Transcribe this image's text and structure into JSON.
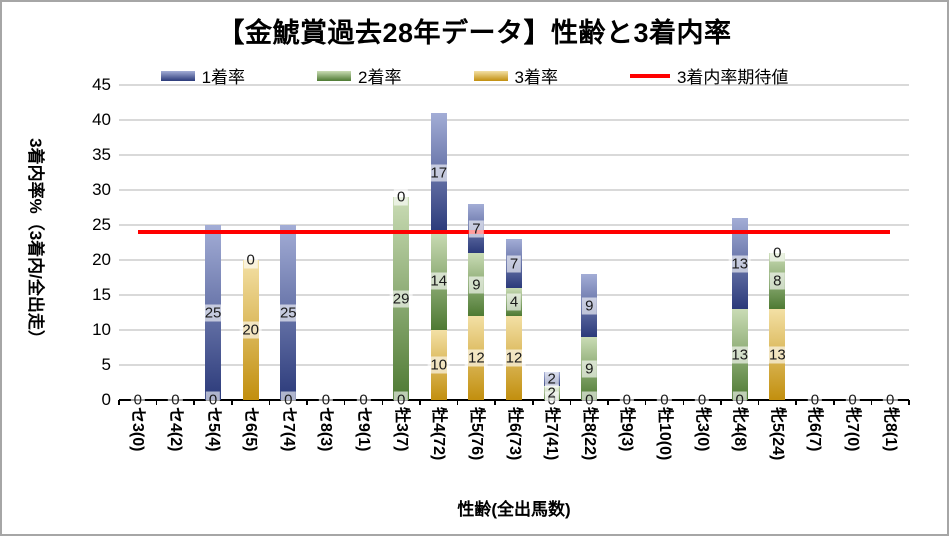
{
  "title": "【金鯱賞過去28年データ】性齢と3着内率",
  "legend": [
    {
      "label": "1着率",
      "marker": "bar",
      "light": "#a3add6",
      "dark": "#2b3a7a"
    },
    {
      "label": "2着率",
      "marker": "bar",
      "light": "#cadcb5",
      "dark": "#4e7a33"
    },
    {
      "label": "3着率",
      "marker": "bar",
      "light": "#f3e0a5",
      "dark": "#c28f0e"
    },
    {
      "label": "3着内率期待値",
      "marker": "line",
      "color": "#ff0000"
    }
  ],
  "chart_data": {
    "type": "bar",
    "stacked": true,
    "title": "【金鯱賞過去28年データ】性齢と3着内率",
    "xlabel": "性齢(全出馬数)",
    "ylabel": "3着内率%（3着内/全出走）",
    "ylim": [
      0,
      45
    ],
    "yticks": [
      0,
      5,
      10,
      15,
      20,
      25,
      30,
      35,
      40,
      45
    ],
    "grid": true,
    "legend_position": "top",
    "data_labels": true,
    "categories": [
      "セ3(0)",
      "セ4(2)",
      "セ5(4)",
      "セ6(5)",
      "セ7(4)",
      "セ8(3)",
      "セ9(1)",
      "牡3(7)",
      "牡4(72)",
      "牡5(76)",
      "牡6(73)",
      "牡7(41)",
      "牡8(22)",
      "牡9(3)",
      "牡10(0)",
      "牝3(0)",
      "牝4(8)",
      "牝5(24)",
      "牝6(7)",
      "牝7(0)",
      "牝8(1)"
    ],
    "series": [
      {
        "name": "3着率",
        "light": "#f3e0a5",
        "dark": "#c28f0e",
        "values": [
          0,
          0,
          0,
          20,
          0,
          0,
          0,
          0,
          10,
          12,
          12,
          0,
          0,
          0,
          0,
          0,
          0,
          13,
          0,
          0,
          0
        ]
      },
      {
        "name": "2着率",
        "light": "#cadcb5",
        "dark": "#4e7a33",
        "values": [
          0,
          0,
          0,
          0,
          0,
          0,
          0,
          29,
          14,
          9,
          4,
          2,
          9,
          0,
          0,
          0,
          13,
          8,
          0,
          0,
          0
        ]
      },
      {
        "name": "1着率",
        "light": "#a3add6",
        "dark": "#2b3a7a",
        "values": [
          0,
          0,
          25,
          0,
          25,
          0,
          0,
          0,
          17,
          7,
          7,
          2,
          9,
          0,
          0,
          0,
          13,
          0,
          0,
          0,
          0
        ]
      }
    ],
    "reference_line": {
      "name": "3着内率期待値",
      "value": 24,
      "color": "#ff0000"
    },
    "colors": {
      "gridline": "#d9d9d9",
      "axis": "#000000",
      "border": "#a6a6a6"
    }
  }
}
